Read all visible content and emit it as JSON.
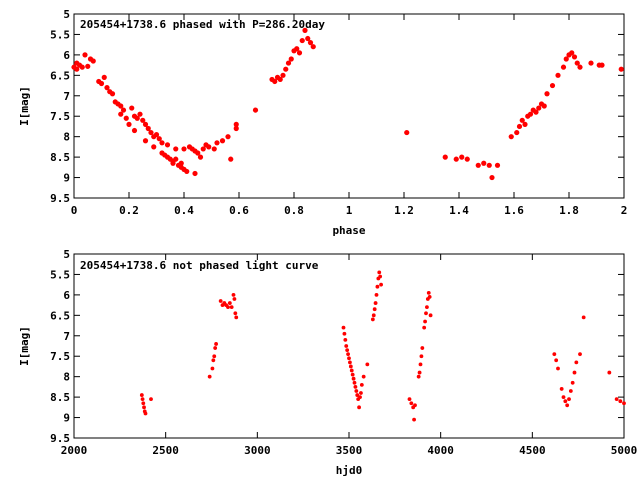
{
  "chart_data": [
    {
      "type": "scatter",
      "title": "205454+1738.6 phased with P=286.20day",
      "xlabel": "phase",
      "ylabel": "I[mag]",
      "xlim": [
        0,
        2
      ],
      "ylim": [
        9.5,
        5
      ],
      "y_inverted": true,
      "xticks": [
        "0",
        "0.2",
        "0.4",
        "0.6",
        "0.8",
        "1",
        "1.2",
        "1.4",
        "1.6",
        "1.8",
        "2"
      ],
      "yticks": [
        "5",
        "5.5",
        "6",
        "6.5",
        "7",
        "7.5",
        "8",
        "8.5",
        "9",
        "9.5"
      ],
      "grid": false,
      "marker_color": "#ff0000",
      "points": [
        [
          0.0,
          6.3
        ],
        [
          0.01,
          6.2
        ],
        [
          0.01,
          6.35
        ],
        [
          0.02,
          6.25
        ],
        [
          0.03,
          6.3
        ],
        [
          0.04,
          6.0
        ],
        [
          0.05,
          6.28
        ],
        [
          0.06,
          6.1
        ],
        [
          0.07,
          6.15
        ],
        [
          0.09,
          6.65
        ],
        [
          0.1,
          6.7
        ],
        [
          0.11,
          6.55
        ],
        [
          0.12,
          6.8
        ],
        [
          0.13,
          6.9
        ],
        [
          0.14,
          6.95
        ],
        [
          0.15,
          7.15
        ],
        [
          0.16,
          7.2
        ],
        [
          0.17,
          7.25
        ],
        [
          0.17,
          7.45
        ],
        [
          0.18,
          7.35
        ],
        [
          0.19,
          7.55
        ],
        [
          0.2,
          7.7
        ],
        [
          0.21,
          7.3
        ],
        [
          0.22,
          7.5
        ],
        [
          0.22,
          7.85
        ],
        [
          0.23,
          7.55
        ],
        [
          0.24,
          7.45
        ],
        [
          0.25,
          7.6
        ],
        [
          0.26,
          7.7
        ],
        [
          0.26,
          8.1
        ],
        [
          0.27,
          7.8
        ],
        [
          0.28,
          7.9
        ],
        [
          0.29,
          8.0
        ],
        [
          0.29,
          8.25
        ],
        [
          0.3,
          7.95
        ],
        [
          0.31,
          8.05
        ],
        [
          0.32,
          8.15
        ],
        [
          0.32,
          8.4
        ],
        [
          0.33,
          8.45
        ],
        [
          0.34,
          8.5
        ],
        [
          0.34,
          8.2
        ],
        [
          0.35,
          8.55
        ],
        [
          0.36,
          8.6
        ],
        [
          0.36,
          8.65
        ],
        [
          0.37,
          8.55
        ],
        [
          0.37,
          8.3
        ],
        [
          0.38,
          8.7
        ],
        [
          0.39,
          8.75
        ],
        [
          0.39,
          8.65
        ],
        [
          0.4,
          8.8
        ],
        [
          0.4,
          8.3
        ],
        [
          0.41,
          8.85
        ],
        [
          0.42,
          8.25
        ],
        [
          0.43,
          8.3
        ],
        [
          0.44,
          8.35
        ],
        [
          0.44,
          8.9
        ],
        [
          0.45,
          8.4
        ],
        [
          0.46,
          8.5
        ],
        [
          0.47,
          8.3
        ],
        [
          0.48,
          8.2
        ],
        [
          0.49,
          8.25
        ],
        [
          0.51,
          8.3
        ],
        [
          0.52,
          8.15
        ],
        [
          0.54,
          8.1
        ],
        [
          0.56,
          8.0
        ],
        [
          0.57,
          8.55
        ],
        [
          0.59,
          7.7
        ],
        [
          0.59,
          7.8
        ],
        [
          0.66,
          7.35
        ],
        [
          0.72,
          6.6
        ],
        [
          0.73,
          6.65
        ],
        [
          0.74,
          6.55
        ],
        [
          0.75,
          6.6
        ],
        [
          0.76,
          6.5
        ],
        [
          0.77,
          6.35
        ],
        [
          0.78,
          6.2
        ],
        [
          0.79,
          6.1
        ],
        [
          0.8,
          5.9
        ],
        [
          0.81,
          5.85
        ],
        [
          0.82,
          5.95
        ],
        [
          0.83,
          5.65
        ],
        [
          0.84,
          5.4
        ],
        [
          0.85,
          5.6
        ],
        [
          0.86,
          5.7
        ],
        [
          0.87,
          5.8
        ],
        [
          1.21,
          7.9
        ],
        [
          1.35,
          8.5
        ],
        [
          1.39,
          8.55
        ],
        [
          1.41,
          8.5
        ],
        [
          1.43,
          8.55
        ],
        [
          1.47,
          8.7
        ],
        [
          1.49,
          8.65
        ],
        [
          1.51,
          8.7
        ],
        [
          1.52,
          9.0
        ],
        [
          1.54,
          8.7
        ],
        [
          1.59,
          8.0
        ],
        [
          1.61,
          7.9
        ],
        [
          1.62,
          7.75
        ],
        [
          1.63,
          7.6
        ],
        [
          1.64,
          7.7
        ],
        [
          1.65,
          7.5
        ],
        [
          1.66,
          7.45
        ],
        [
          1.67,
          7.35
        ],
        [
          1.68,
          7.4
        ],
        [
          1.69,
          7.3
        ],
        [
          1.7,
          7.2
        ],
        [
          1.71,
          7.25
        ],
        [
          1.72,
          6.95
        ],
        [
          1.74,
          6.75
        ],
        [
          1.76,
          6.5
        ],
        [
          1.78,
          6.3
        ],
        [
          1.79,
          6.1
        ],
        [
          1.8,
          6.0
        ],
        [
          1.81,
          5.95
        ],
        [
          1.82,
          6.05
        ],
        [
          1.83,
          6.2
        ],
        [
          1.84,
          6.3
        ],
        [
          1.88,
          6.2
        ],
        [
          1.91,
          6.25
        ],
        [
          1.92,
          6.25
        ],
        [
          1.99,
          6.35
        ]
      ]
    },
    {
      "type": "scatter",
      "title": "205454+1738.6 not phased light curve",
      "xlabel": "hjd0",
      "ylabel": "I[mag]",
      "xlim": [
        2000,
        5000
      ],
      "ylim": [
        9.5,
        5
      ],
      "y_inverted": true,
      "xticks": [
        "2000",
        "2500",
        "3000",
        "3500",
        "4000",
        "4500",
        "5000"
      ],
      "yticks": [
        "5",
        "5.5",
        "6",
        "6.5",
        "7",
        "7.5",
        "8",
        "8.5",
        "9",
        "9.5"
      ],
      "grid": false,
      "marker_color": "#ff0000",
      "points": [
        [
          2370,
          8.45
        ],
        [
          2374,
          8.55
        ],
        [
          2378,
          8.65
        ],
        [
          2382,
          8.75
        ],
        [
          2386,
          8.85
        ],
        [
          2390,
          8.9
        ],
        [
          2420,
          8.55
        ],
        [
          2740,
          8.0
        ],
        [
          2755,
          7.8
        ],
        [
          2760,
          7.6
        ],
        [
          2765,
          7.5
        ],
        [
          2770,
          7.3
        ],
        [
          2775,
          7.2
        ],
        [
          2800,
          6.15
        ],
        [
          2810,
          6.25
        ],
        [
          2820,
          6.2
        ],
        [
          2830,
          6.25
        ],
        [
          2840,
          6.3
        ],
        [
          2850,
          6.2
        ],
        [
          2860,
          6.3
        ],
        [
          2870,
          6.0
        ],
        [
          2875,
          6.1
        ],
        [
          2880,
          6.45
        ],
        [
          2885,
          6.55
        ],
        [
          3470,
          6.8
        ],
        [
          3475,
          6.95
        ],
        [
          3480,
          7.1
        ],
        [
          3485,
          7.25
        ],
        [
          3490,
          7.35
        ],
        [
          3495,
          7.45
        ],
        [
          3500,
          7.55
        ],
        [
          3505,
          7.65
        ],
        [
          3510,
          7.75
        ],
        [
          3515,
          7.85
        ],
        [
          3520,
          7.95
        ],
        [
          3525,
          8.05
        ],
        [
          3530,
          8.15
        ],
        [
          3535,
          8.25
        ],
        [
          3540,
          8.35
        ],
        [
          3545,
          8.45
        ],
        [
          3550,
          8.55
        ],
        [
          3555,
          8.75
        ],
        [
          3560,
          8.5
        ],
        [
          3565,
          8.4
        ],
        [
          3570,
          8.2
        ],
        [
          3580,
          8.0
        ],
        [
          3600,
          7.7
        ],
        [
          3630,
          6.6
        ],
        [
          3635,
          6.5
        ],
        [
          3640,
          6.35
        ],
        [
          3645,
          6.2
        ],
        [
          3650,
          6.0
        ],
        [
          3655,
          5.8
        ],
        [
          3660,
          5.6
        ],
        [
          3665,
          5.45
        ],
        [
          3670,
          5.55
        ],
        [
          3675,
          5.75
        ],
        [
          3830,
          8.55
        ],
        [
          3840,
          8.65
        ],
        [
          3850,
          8.75
        ],
        [
          3855,
          9.05
        ],
        [
          3860,
          8.7
        ],
        [
          3880,
          8.0
        ],
        [
          3885,
          7.9
        ],
        [
          3890,
          7.7
        ],
        [
          3895,
          7.5
        ],
        [
          3900,
          7.3
        ],
        [
          3910,
          6.8
        ],
        [
          3915,
          6.65
        ],
        [
          3920,
          6.45
        ],
        [
          3925,
          6.3
        ],
        [
          3930,
          6.1
        ],
        [
          3935,
          5.95
        ],
        [
          3940,
          6.05
        ],
        [
          3945,
          6.5
        ],
        [
          4620,
          7.45
        ],
        [
          4630,
          7.6
        ],
        [
          4640,
          7.8
        ],
        [
          4660,
          8.3
        ],
        [
          4670,
          8.5
        ],
        [
          4680,
          8.6
        ],
        [
          4690,
          8.7
        ],
        [
          4700,
          8.55
        ],
        [
          4710,
          8.35
        ],
        [
          4720,
          8.15
        ],
        [
          4730,
          7.9
        ],
        [
          4740,
          7.65
        ],
        [
          4760,
          7.45
        ],
        [
          4780,
          6.55
        ],
        [
          4920,
          7.9
        ],
        [
          4960,
          8.55
        ],
        [
          4980,
          8.6
        ],
        [
          5000,
          8.65
        ]
      ]
    }
  ]
}
